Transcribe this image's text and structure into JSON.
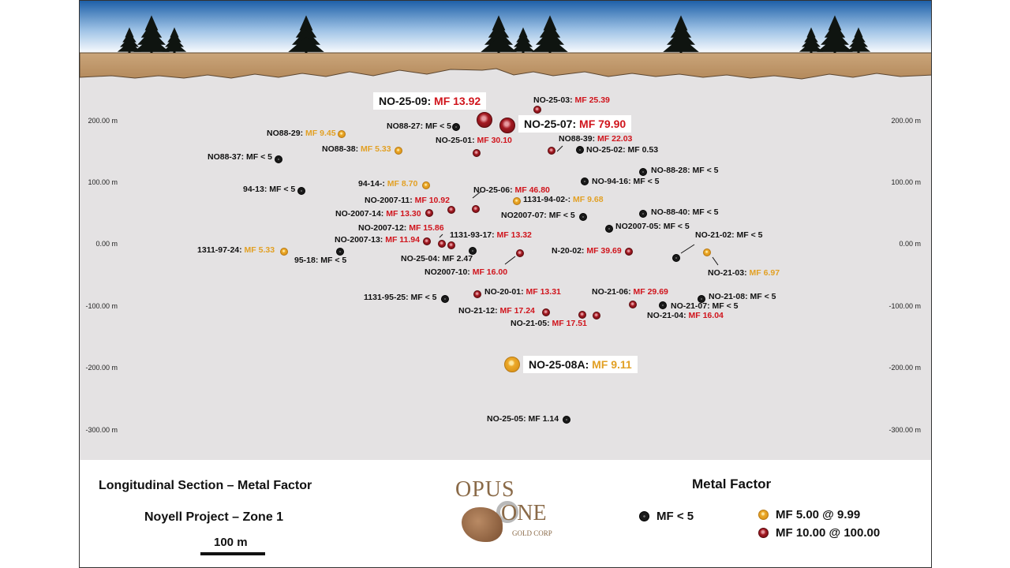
{
  "elevations": [
    "200.00 m",
    "100.00 m",
    "0.00 m",
    "-100.00 m",
    "-200.00 m",
    "-300.00 m"
  ],
  "holes": [
    {
      "label": "NO-25-09:",
      "mf": "MF 13.92",
      "cls": "red",
      "big": true
    },
    {
      "label": "NO-25-03:",
      "mf": "MF 25.39",
      "cls": "red"
    },
    {
      "label": "NO-25-07:",
      "mf": "MF 79.90",
      "cls": "red",
      "big": true
    },
    {
      "label": "NO88-27:",
      "mf": "MF < 5",
      "cls": "black"
    },
    {
      "label": "NO88-29:",
      "mf": "MF 9.45",
      "cls": "yellow"
    },
    {
      "label": "NO-25-01:",
      "mf": "MF 30.10",
      "cls": "red"
    },
    {
      "label": "NO88-39:",
      "mf": "MF 22.03",
      "cls": "red"
    },
    {
      "label": "NO88-38:",
      "mf": "MF 5.33",
      "cls": "yellow"
    },
    {
      "label": "NO-25-02:",
      "mf": "MF 0.53",
      "cls": "black"
    },
    {
      "label": "NO88-37:",
      "mf": "MF < 5",
      "cls": "black"
    },
    {
      "label": "NO-88-28:",
      "mf": "MF < 5",
      "cls": "black"
    },
    {
      "label": "94-14-:",
      "mf": "MF 8.70",
      "cls": "yellow"
    },
    {
      "label": "NO-94-16:",
      "mf": "MF < 5",
      "cls": "black"
    },
    {
      "label": "94-13:",
      "mf": "MF < 5",
      "cls": "black"
    },
    {
      "label": "NO-25-06:",
      "mf": "MF 46.80",
      "cls": "red"
    },
    {
      "label": "NO-2007-11:",
      "mf": "MF 10.92",
      "cls": "red"
    },
    {
      "label": "1131-94-02-:",
      "mf": "MF 9.68",
      "cls": "yellow"
    },
    {
      "label": "NO-2007-14:",
      "mf": "MF 13.30",
      "cls": "red"
    },
    {
      "label": "NO2007-07:",
      "mf": "MF < 5",
      "cls": "black"
    },
    {
      "label": "NO-88-40:",
      "mf": "MF < 5",
      "cls": "black"
    },
    {
      "label": "NO-2007-12:",
      "mf": "MF 15.86",
      "cls": "red"
    },
    {
      "label": "NO2007-05:",
      "mf": "MF < 5",
      "cls": "black"
    },
    {
      "label": "1131-93-17:",
      "mf": "MF 13.32",
      "cls": "red"
    },
    {
      "label": "NO-2007-13:",
      "mf": "MF 11.94",
      "cls": "red"
    },
    {
      "label": "NO-21-02:",
      "mf": "MF < 5",
      "cls": "black"
    },
    {
      "label": "1311-97-24:",
      "mf": "MF 5.33",
      "cls": "yellow"
    },
    {
      "label": "N-20-02:",
      "mf": "MF 39.69",
      "cls": "red"
    },
    {
      "label": "95-18:",
      "mf": "MF < 5",
      "cls": "black"
    },
    {
      "label": "NO-25-04:",
      "mf": "MF 2.47",
      "cls": "black"
    },
    {
      "label": "NO2007-10:",
      "mf": "MF 16.00",
      "cls": "red"
    },
    {
      "label": "NO-21-03:",
      "mf": "MF 6.97",
      "cls": "yellow"
    },
    {
      "label": "NO-20-01:",
      "mf": "MF 13.31",
      "cls": "red"
    },
    {
      "label": "NO-21-06:",
      "mf": "MF 29.69",
      "cls": "red"
    },
    {
      "label": "1131-95-25:",
      "mf": "MF < 5",
      "cls": "black"
    },
    {
      "label": "NO-21-08:",
      "mf": "MF < 5",
      "cls": "black"
    },
    {
      "label": "NO-21-07:",
      "mf": "MF < 5",
      "cls": "black"
    },
    {
      "label": "NO-21-12:",
      "mf": "MF 17.24",
      "cls": "red"
    },
    {
      "label": "NO-21-04:",
      "mf": "MF 16.04",
      "cls": "red"
    },
    {
      "label": "NO-21-05:",
      "mf": "MF 17.51",
      "cls": "red"
    },
    {
      "label": "NO-25-08A:",
      "mf": "MF 9.11",
      "cls": "yellow",
      "big": true
    },
    {
      "label": "NO-25-05:",
      "mf": "MF 1.14",
      "cls": "black"
    }
  ],
  "footer": {
    "title": "Longitudinal  Section – Metal Factor",
    "project": "Noyell Project  – Zone 1",
    "scale": "100 m",
    "logo": {
      "line1": "OPUS",
      "line2": "ONE",
      "line3": "GOLD CORP"
    },
    "legend_title": "Metal Factor",
    "legend": [
      {
        "cls": "black",
        "label": "MF < 5"
      },
      {
        "cls": "yellow",
        "label": "MF 5.00 @ 9.99"
      },
      {
        "cls": "red",
        "label": "MF 10.00 @ 100.00"
      }
    ]
  },
  "colors": {
    "sky_top": "#1e60a8",
    "sky_bottom": "#ffffff",
    "soil": "#c19a6b",
    "rock": "#e4e2e3",
    "high_mf": "#d0141c",
    "mid_mf": "#e2a024",
    "low_mf": "#1a1a1a"
  }
}
